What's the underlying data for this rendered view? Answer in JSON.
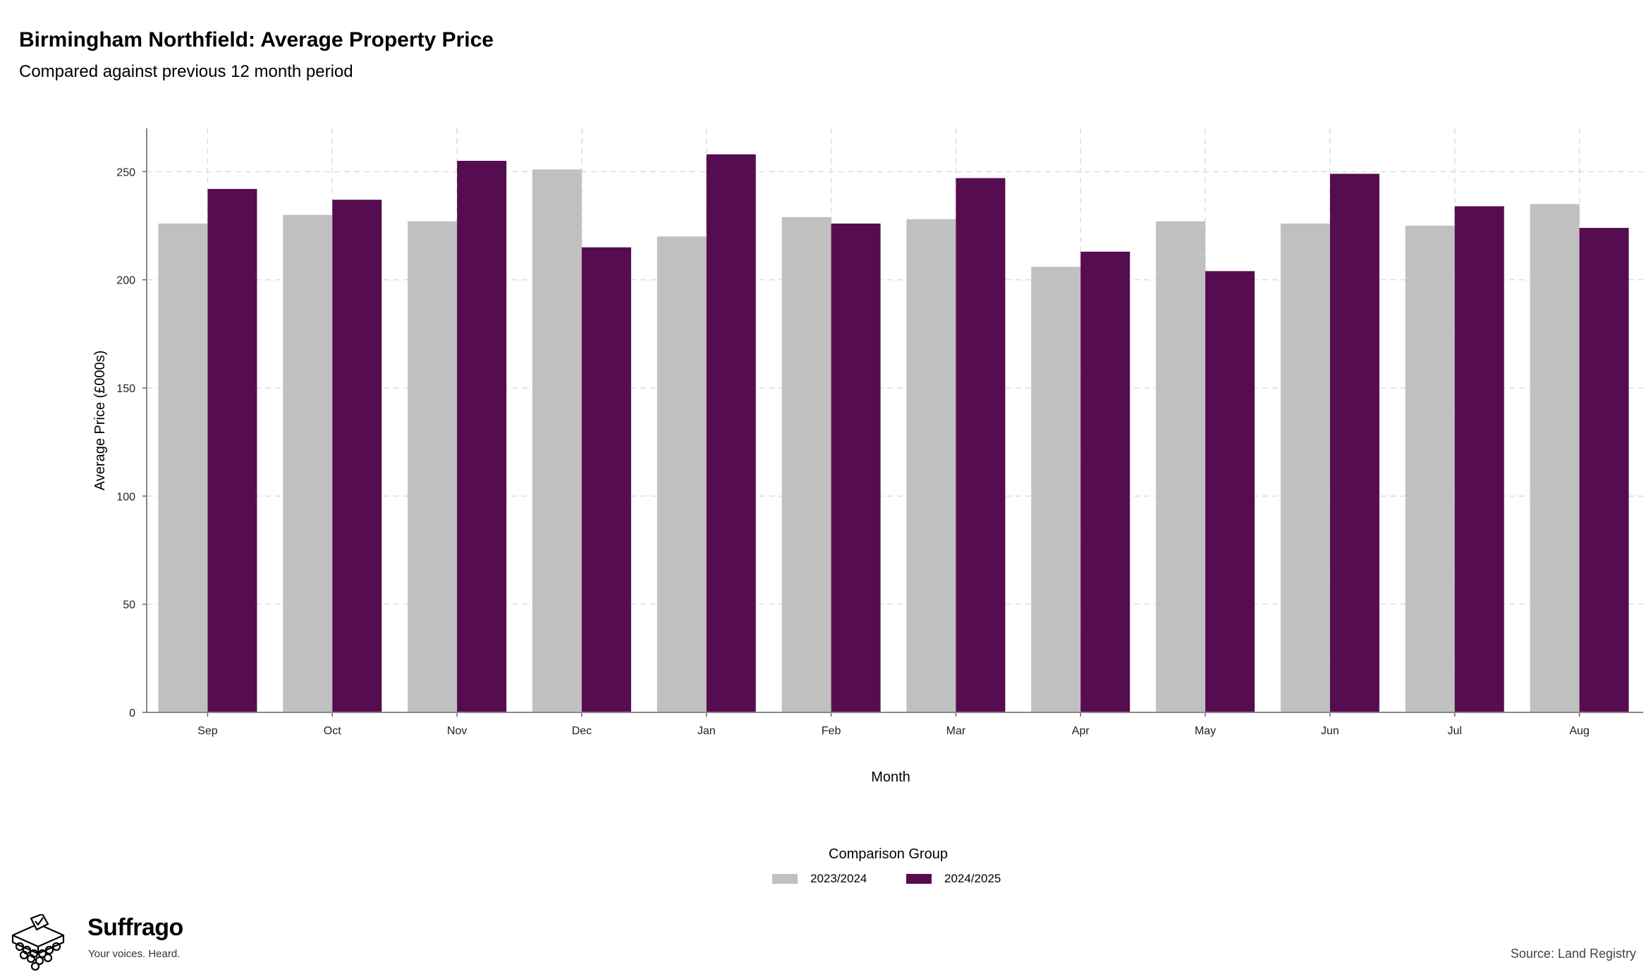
{
  "chart_data": {
    "type": "bar",
    "title": "Birmingham Northfield: Average Property Price",
    "subtitle": "Compared against previous 12 month period",
    "xlabel": "Month",
    "ylabel": "Average Price (£000s)",
    "ylim": [
      0,
      270
    ],
    "yticks": [
      "0",
      "50",
      "100",
      "150",
      "200",
      "250"
    ],
    "grid": true,
    "categories": [
      "Sep",
      "Oct",
      "Nov",
      "Dec",
      "Jan",
      "Feb",
      "Mar",
      "Apr",
      "May",
      "Jun",
      "Jul",
      "Aug"
    ],
    "series": [
      {
        "name": "2023/2024",
        "color": "#c0c0c0",
        "values": [
          226,
          230,
          227,
          251,
          220,
          229,
          228,
          206,
          227,
          226,
          225,
          235
        ]
      },
      {
        "name": "2024/2025",
        "color": "#560c51",
        "values": [
          242,
          237,
          255,
          215,
          258,
          226,
          247,
          213,
          204,
          249,
          234,
          224
        ]
      }
    ],
    "legend": {
      "title": "Comparison Group",
      "placement": "bottom-center"
    }
  },
  "branding": {
    "name": "Suffrago",
    "tagline": "Your voices. Heard.",
    "icon": "ballot-box-icon"
  },
  "source": "Source: Land Registry"
}
